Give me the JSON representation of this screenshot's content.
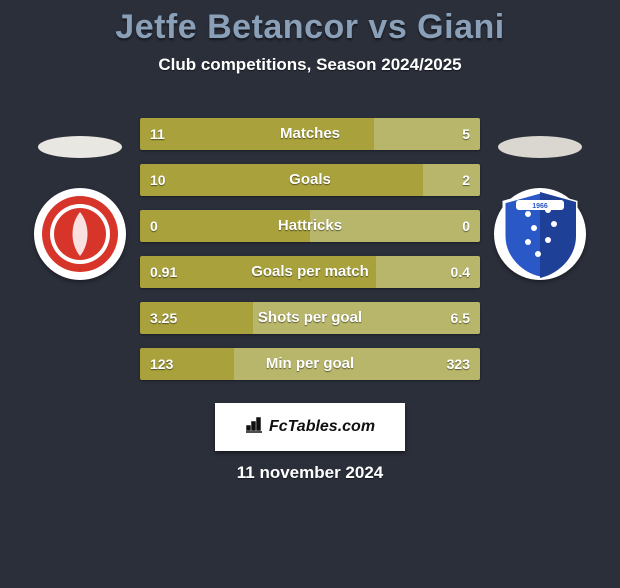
{
  "title_color": "#8aa0b8",
  "background_color": "#2b2f3a",
  "title": "Jetfe Betancor vs Giani",
  "subtitle": "Club competitions, Season 2024/2025",
  "date": "11 november 2024",
  "footer_text": "FcTables.com",
  "left_player": {
    "ellipse_color": "#e9e7e2",
    "crest_bg": "#ffffff",
    "crest_primary": "#d8352a",
    "crest_secondary": "#921f17"
  },
  "right_player": {
    "ellipse_color": "#d9d7d0",
    "crest_bg": "#ffffff",
    "crest_primary": "#2a58c7",
    "crest_secondary": "#ffffff"
  },
  "bar_colors": {
    "left": "#a8a13c",
    "right": "#b8b66a"
  },
  "stats": [
    {
      "label": "Matches",
      "left_val": "11",
      "right_val": "5",
      "left_num": 11,
      "right_num": 5
    },
    {
      "label": "Goals",
      "left_val": "10",
      "right_val": "2",
      "left_num": 10,
      "right_num": 2
    },
    {
      "label": "Hattricks",
      "left_val": "0",
      "right_val": "0",
      "left_num": 0,
      "right_num": 0
    },
    {
      "label": "Goals per match",
      "left_val": "0.91",
      "right_val": "0.4",
      "left_num": 0.91,
      "right_num": 0.4
    },
    {
      "label": "Shots per goal",
      "left_val": "3.25",
      "right_val": "6.5",
      "left_num": 3.25,
      "right_num": 6.5
    },
    {
      "label": "Min per goal",
      "left_val": "123",
      "right_val": "323",
      "left_num": 123,
      "right_num": 323
    }
  ]
}
